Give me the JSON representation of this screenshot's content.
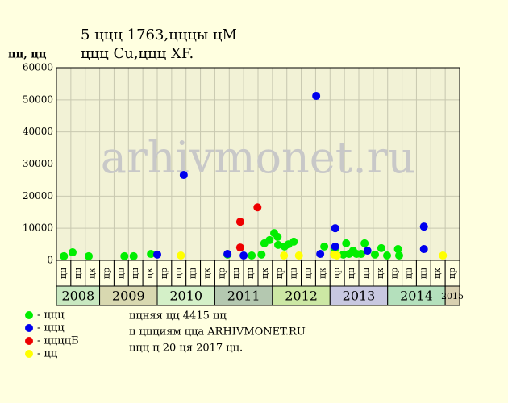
{
  "chart_data": {
    "type": "scatter",
    "title": "5 ццц 1763,цццы цМ",
    "subtitle": "ццц Cu,ццц XF.",
    "y_label": "цц, цц",
    "watermark": "arhivmonet.ru",
    "xlim": [
      2008.25,
      2015.25
    ],
    "ylim": [
      0,
      60000
    ],
    "yticks": [
      0,
      10000,
      20000,
      30000,
      40000,
      50000,
      60000
    ],
    "xticks": [
      {
        "value": 2008.375,
        "label": "цц"
      },
      {
        "value": 2008.625,
        "label": "цц"
      },
      {
        "value": 2008.875,
        "label": "цк"
      },
      {
        "value": 2009.125,
        "label": "цр"
      },
      {
        "value": 2009.375,
        "label": "цц"
      },
      {
        "value": 2009.625,
        "label": "цц"
      },
      {
        "value": 2009.875,
        "label": "цк"
      },
      {
        "value": 2010.125,
        "label": "цр"
      },
      {
        "value": 2010.375,
        "label": "цц"
      },
      {
        "value": 2010.625,
        "label": "цц"
      },
      {
        "value": 2010.875,
        "label": "цк"
      },
      {
        "value": 2011.125,
        "label": "цр"
      },
      {
        "value": 2011.375,
        "label": "цц"
      },
      {
        "value": 2011.625,
        "label": "цц"
      },
      {
        "value": 2011.875,
        "label": "цк"
      },
      {
        "value": 2012.125,
        "label": "цр"
      },
      {
        "value": 2012.375,
        "label": "цц"
      },
      {
        "value": 2012.625,
        "label": "цц"
      },
      {
        "value": 2012.875,
        "label": "цк"
      },
      {
        "value": 2013.125,
        "label": "цр"
      },
      {
        "value": 2013.375,
        "label": "цц"
      },
      {
        "value": 2013.625,
        "label": "цц"
      },
      {
        "value": 2013.875,
        "label": "цк"
      },
      {
        "value": 2014.125,
        "label": "цр"
      },
      {
        "value": 2014.375,
        "label": "цц"
      },
      {
        "value": 2014.625,
        "label": "цц"
      },
      {
        "value": 2014.875,
        "label": "цк"
      },
      {
        "value": 2015.125,
        "label": "цр"
      }
    ],
    "years": [
      2008,
      2009,
      2010,
      2011,
      2012,
      2013,
      2014,
      2015
    ],
    "year_colors": [
      "#c8e8c0",
      "#d8d8b0",
      "#d4f0c8",
      "#b4c8b0",
      "#cce8a4",
      "#c8c8e0",
      "#b4e0bc",
      "#d8d0b0"
    ],
    "grid": true,
    "series": [
      {
        "name": "- ццц",
        "color": "#00ee00",
        "x": [
          2008.38,
          2008.53,
          2008.81,
          2009.43,
          2009.59,
          2009.89,
          2011.22,
          2011.64,
          2011.81,
          2011.86,
          2011.95,
          2012.03,
          2012.09,
          2012.1,
          2012.21,
          2012.28,
          2012.37,
          2012.9,
          2013.08,
          2013.23,
          2013.28,
          2013.33,
          2013.4,
          2013.46,
          2013.54,
          2013.6,
          2013.78,
          2013.89,
          2013.99,
          2014.18,
          2014.2
        ],
        "values": [
          1300,
          2500,
          1300,
          1300,
          1300,
          2000,
          1800,
          1500,
          1800,
          5300,
          6300,
          8500,
          7300,
          4800,
          4300,
          5000,
          5800,
          4300,
          3300,
          1800,
          5300,
          2000,
          3000,
          2000,
          2000,
          5300,
          1800,
          3800,
          1500,
          3500,
          1500
        ]
      },
      {
        "name": "- ццц",
        "color": "#0000ee",
        "x": [
          2010.0,
          2010.46,
          2011.22,
          2011.5,
          2012.76,
          2012.83,
          2013.09,
          2013.09,
          2013.65,
          2014.63,
          2014.63
        ],
        "values": [
          1800,
          26600,
          2000,
          1500,
          51200,
          2000,
          10000,
          4300,
          3000,
          10500,
          3500
        ]
      },
      {
        "name": "- ццццБ",
        "color": "#ee0000",
        "x": [
          2011.44,
          2011.44,
          2011.74
        ],
        "values": [
          12000,
          4000,
          16500
        ]
      },
      {
        "name": "- цц",
        "color": "#ffff00",
        "x": [
          2010.41,
          2012.2,
          2012.46,
          2013.07,
          2013.12,
          2014.96
        ],
        "values": [
          1500,
          1500,
          1500,
          1800,
          1500,
          1500
        ]
      }
    ],
    "notes": [
      "ццняя цц 4415 цц",
      "ц ццциям ццa ARHIVMONET.RU",
      "ццц ц 20 ця 2017 цц."
    ]
  }
}
